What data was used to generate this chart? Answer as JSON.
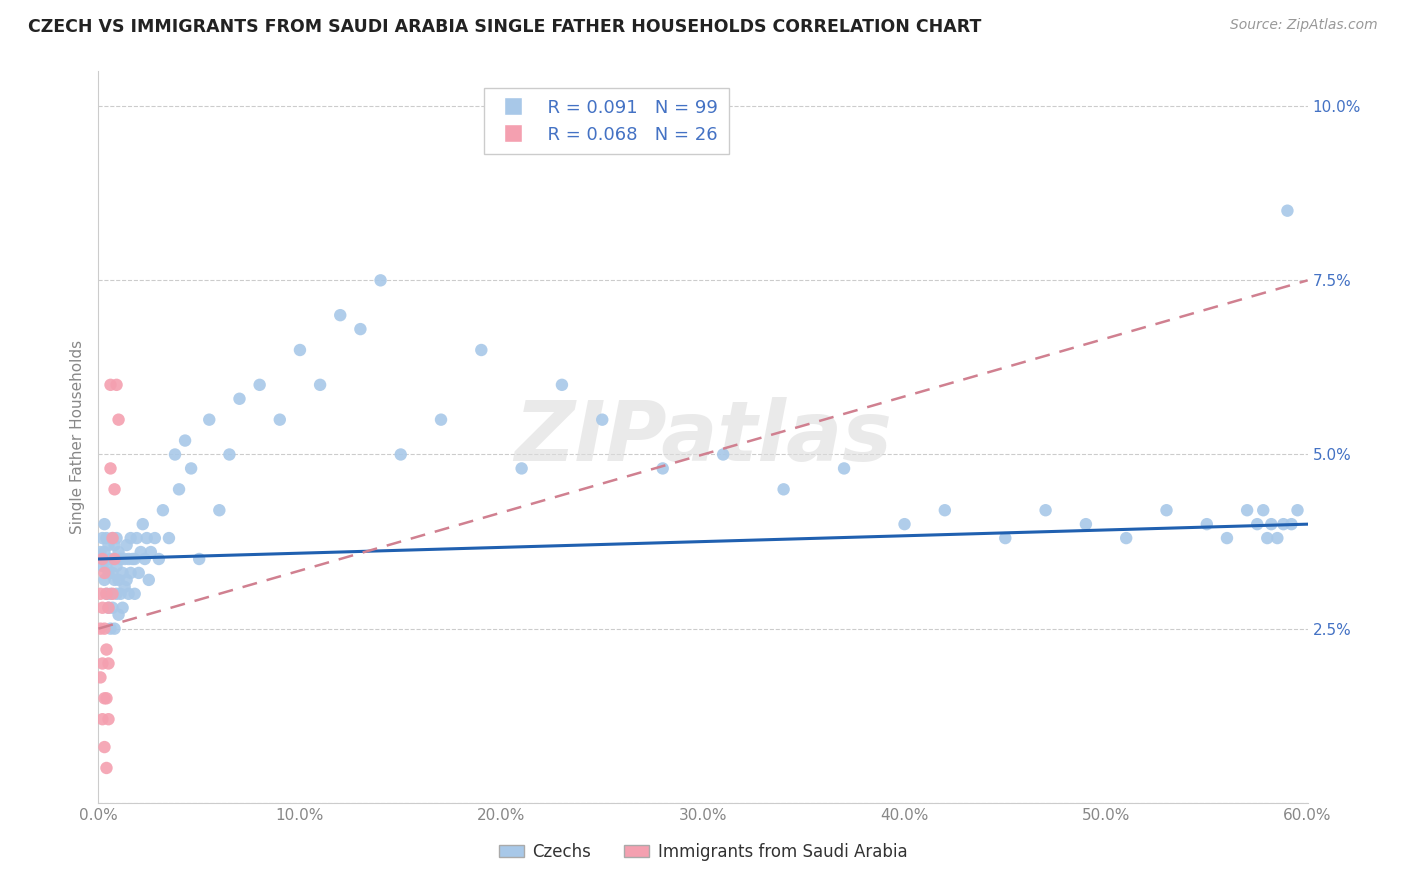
{
  "title": "CZECH VS IMMIGRANTS FROM SAUDI ARABIA SINGLE FATHER HOUSEHOLDS CORRELATION CHART",
  "source": "Source: ZipAtlas.com",
  "ylabel": "Single Father Households",
  "xlim": [
    0,
    0.6
  ],
  "ylim": [
    0,
    0.105
  ],
  "xticks": [
    0.0,
    0.1,
    0.2,
    0.3,
    0.4,
    0.5,
    0.6
  ],
  "xtick_labels": [
    "0.0%",
    "10.0%",
    "20.0%",
    "30.0%",
    "40.0%",
    "50.0%",
    "60.0%"
  ],
  "yticks": [
    0.0,
    0.025,
    0.05,
    0.075,
    0.1
  ],
  "ytick_labels": [
    "",
    "2.5%",
    "5.0%",
    "7.5%",
    "10.0%"
  ],
  "czechs_R": 0.091,
  "czechs_N": 99,
  "saudi_R": 0.068,
  "saudi_N": 26,
  "czech_color": "#a8c8e8",
  "saudi_color": "#f4a0b0",
  "czech_line_color": "#2060b0",
  "saudi_line_color": "#d08090",
  "background_color": "#ffffff",
  "legend_label_czech": "Czechs",
  "legend_label_saudi": "Immigrants from Saudi Arabia",
  "watermark": "ZIPatlas",
  "czechs_x": [
    0.001,
    0.002,
    0.002,
    0.003,
    0.003,
    0.003,
    0.004,
    0.004,
    0.004,
    0.005,
    0.005,
    0.005,
    0.006,
    0.006,
    0.006,
    0.007,
    0.007,
    0.007,
    0.008,
    0.008,
    0.008,
    0.009,
    0.009,
    0.009,
    0.01,
    0.01,
    0.01,
    0.011,
    0.011,
    0.012,
    0.012,
    0.013,
    0.013,
    0.014,
    0.014,
    0.015,
    0.015,
    0.016,
    0.016,
    0.017,
    0.018,
    0.018,
    0.019,
    0.02,
    0.021,
    0.022,
    0.023,
    0.024,
    0.025,
    0.026,
    0.028,
    0.03,
    0.032,
    0.035,
    0.038,
    0.04,
    0.043,
    0.046,
    0.05,
    0.055,
    0.06,
    0.065,
    0.07,
    0.08,
    0.09,
    0.1,
    0.11,
    0.12,
    0.13,
    0.14,
    0.15,
    0.17,
    0.19,
    0.21,
    0.23,
    0.25,
    0.28,
    0.31,
    0.34,
    0.37,
    0.4,
    0.42,
    0.45,
    0.47,
    0.49,
    0.51,
    0.53,
    0.55,
    0.56,
    0.57,
    0.575,
    0.578,
    0.58,
    0.582,
    0.585,
    0.588,
    0.59,
    0.592,
    0.595
  ],
  "czechs_y": [
    0.036,
    0.034,
    0.038,
    0.032,
    0.036,
    0.04,
    0.03,
    0.034,
    0.038,
    0.028,
    0.033,
    0.037,
    0.025,
    0.03,
    0.035,
    0.028,
    0.033,
    0.038,
    0.025,
    0.032,
    0.037,
    0.03,
    0.034,
    0.038,
    0.027,
    0.032,
    0.036,
    0.03,
    0.035,
    0.028,
    0.033,
    0.031,
    0.035,
    0.032,
    0.037,
    0.03,
    0.035,
    0.033,
    0.038,
    0.035,
    0.03,
    0.035,
    0.038,
    0.033,
    0.036,
    0.04,
    0.035,
    0.038,
    0.032,
    0.036,
    0.038,
    0.035,
    0.042,
    0.038,
    0.05,
    0.045,
    0.052,
    0.048,
    0.035,
    0.055,
    0.042,
    0.05,
    0.058,
    0.06,
    0.055,
    0.065,
    0.06,
    0.07,
    0.068,
    0.075,
    0.05,
    0.055,
    0.065,
    0.048,
    0.06,
    0.055,
    0.048,
    0.05,
    0.045,
    0.048,
    0.04,
    0.042,
    0.038,
    0.042,
    0.04,
    0.038,
    0.042,
    0.04,
    0.038,
    0.042,
    0.04,
    0.042,
    0.038,
    0.04,
    0.038,
    0.04,
    0.085,
    0.04,
    0.042
  ],
  "saudi_x": [
    0.001,
    0.001,
    0.001,
    0.002,
    0.002,
    0.002,
    0.002,
    0.003,
    0.003,
    0.003,
    0.003,
    0.004,
    0.004,
    0.004,
    0.004,
    0.005,
    0.005,
    0.005,
    0.006,
    0.006,
    0.007,
    0.007,
    0.008,
    0.008,
    0.009,
    0.01
  ],
  "saudi_y": [
    0.03,
    0.025,
    0.018,
    0.035,
    0.028,
    0.02,
    0.012,
    0.033,
    0.025,
    0.015,
    0.008,
    0.03,
    0.022,
    0.015,
    0.005,
    0.028,
    0.02,
    0.012,
    0.06,
    0.048,
    0.038,
    0.03,
    0.045,
    0.035,
    0.06,
    0.055
  ]
}
